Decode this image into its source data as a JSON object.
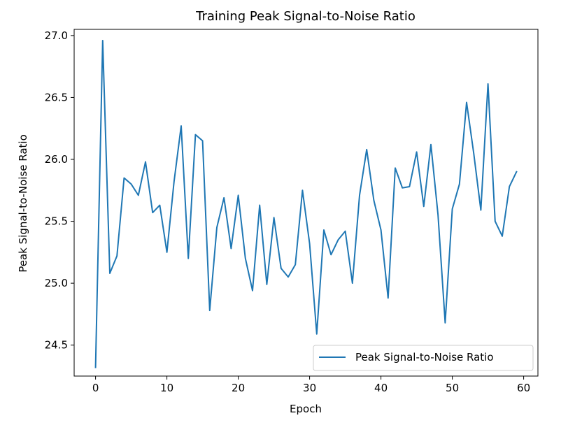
{
  "chart_data": {
    "type": "line",
    "title": "Training Peak Signal-to-Noise Ratio",
    "xlabel": "Epoch",
    "ylabel": "Peak Signal-to-Noise Ratio",
    "xlim": [
      -3,
      62
    ],
    "ylim": [
      24.25,
      27.05
    ],
    "xticks": [
      0,
      10,
      20,
      30,
      40,
      50,
      60
    ],
    "yticks": [
      24.5,
      25.0,
      25.5,
      26.0,
      26.5,
      27.0
    ],
    "xtick_labels": [
      "0",
      "10",
      "20",
      "30",
      "40",
      "50",
      "60"
    ],
    "ytick_labels": [
      "24.5",
      "25.0",
      "25.5",
      "26.0",
      "26.5",
      "27.0"
    ],
    "grid": false,
    "legend_position": "lower-right",
    "series": [
      {
        "name": "Peak Signal-to-Noise Ratio",
        "color": "#1f77b4",
        "x": [
          0,
          1,
          2,
          3,
          4,
          5,
          6,
          7,
          8,
          9,
          10,
          11,
          12,
          13,
          14,
          15,
          16,
          17,
          18,
          19,
          20,
          21,
          22,
          23,
          24,
          25,
          26,
          27,
          28,
          29,
          30,
          31,
          32,
          33,
          34,
          35,
          36,
          37,
          38,
          39,
          40,
          41,
          42,
          43,
          44,
          45,
          46,
          47,
          48,
          49,
          50,
          51,
          52,
          53,
          54,
          55,
          56,
          57,
          58,
          59
        ],
        "y": [
          24.32,
          26.96,
          25.08,
          25.22,
          25.85,
          25.8,
          25.71,
          25.98,
          25.57,
          25.63,
          25.25,
          25.82,
          26.27,
          25.2,
          26.2,
          26.15,
          24.78,
          25.45,
          25.69,
          25.28,
          25.71,
          25.2,
          24.94,
          25.63,
          24.99,
          25.53,
          25.12,
          25.05,
          25.15,
          25.75,
          25.32,
          24.59,
          25.43,
          25.23,
          25.35,
          25.42,
          25.0,
          25.71,
          26.08,
          25.67,
          25.43,
          24.88,
          25.93,
          25.77,
          25.78,
          26.06,
          25.62,
          26.12,
          25.55,
          24.68,
          25.6,
          25.8,
          26.46,
          26.05,
          25.59,
          26.61,
          25.5,
          25.38,
          25.78,
          25.9
        ]
      }
    ]
  }
}
